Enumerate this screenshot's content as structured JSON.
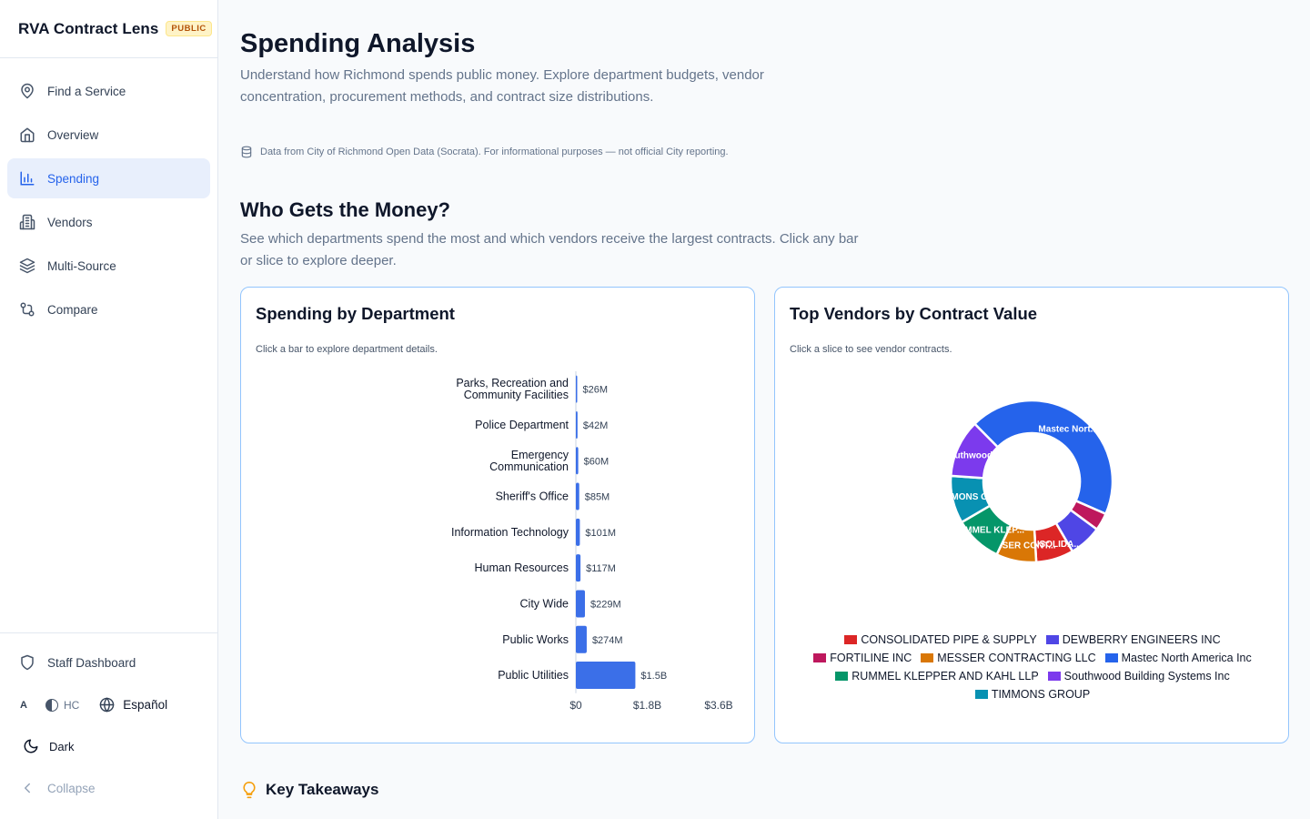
{
  "app": {
    "title": "RVA Contract Lens",
    "badge": "PUBLIC"
  },
  "nav": {
    "items": [
      {
        "label": "Find a Service",
        "icon": "map-pin-icon"
      },
      {
        "label": "Overview",
        "icon": "home-icon"
      },
      {
        "label": "Spending",
        "icon": "bar-chart-icon",
        "active": true
      },
      {
        "label": "Vendors",
        "icon": "building-icon"
      },
      {
        "label": "Multi-Source",
        "icon": "layers-icon"
      },
      {
        "label": "Compare",
        "icon": "compare-icon"
      }
    ]
  },
  "sidebar_bottom": {
    "staff_dashboard": "Staff Dashboard",
    "font_toggle": "A",
    "high_contrast": "HC",
    "language": "Español",
    "dark_mode": "Dark",
    "collapse": "Collapse"
  },
  "page": {
    "title": "Spending Analysis",
    "description": "Understand how Richmond spends public money. Explore department budgets, vendor concentration, procurement methods, and contract size distributions.",
    "source_note": "Data from City of Richmond Open Data (Socrata). For informational purposes — not official City reporting."
  },
  "section": {
    "title": "Who Gets the Money?",
    "description": "See which departments spend the most and which vendors receive the largest contracts. Click any bar or slice to explore deeper."
  },
  "dept_card": {
    "title": "Spending by Department",
    "hint": "Click a bar to explore department details."
  },
  "vendor_card": {
    "title": "Top Vendors by Contract Value",
    "hint": "Click a slice to see vendor contracts."
  },
  "takeaways": {
    "title": "Key Takeaways"
  },
  "colors": {
    "accent": "#2563eb",
    "bar": "#3b6fe8",
    "card_border": "#93c5fd"
  },
  "chart_data": [
    {
      "type": "bar",
      "orientation": "horizontal",
      "title": "Spending by Department",
      "categories": [
        [
          "Parks, Recreation and",
          "Community Facilities"
        ],
        [
          "Police Department"
        ],
        [
          "Emergency",
          "Communication"
        ],
        [
          "Sheriff's Office"
        ],
        [
          "Information Technology"
        ],
        [
          "Human Resources"
        ],
        [
          "City Wide"
        ],
        [
          "Public Works"
        ],
        [
          "Public Utilities"
        ]
      ],
      "values": [
        26,
        42,
        60,
        85,
        101,
        117,
        229,
        274,
        1500
      ],
      "value_labels": [
        "$26M",
        "$42M",
        "$60M",
        "$85M",
        "$101M",
        "$117M",
        "$229M",
        "$274M",
        "$1.5B"
      ],
      "unit": "USD millions",
      "xlim": [
        0,
        3600
      ],
      "x_ticks": [
        0,
        1800,
        3600
      ],
      "x_tick_labels": [
        "$0",
        "$1.8B",
        "$3.6B"
      ],
      "grid": false
    },
    {
      "type": "pie",
      "variant": "donut",
      "title": "Top Vendors by Contract Value",
      "slices": [
        {
          "name": "Mastec North America Inc",
          "label": "Mastec Nort...",
          "value": 44.0,
          "color": "#2563eb"
        },
        {
          "name": "FORTILINE INC",
          "label": "",
          "value": 3.5,
          "color": "#be185d"
        },
        {
          "name": "DEWBERRY ENGINEERS INC",
          "label": "",
          "value": 6.5,
          "color": "#4f46e5"
        },
        {
          "name": "CONSOLIDATED PIPE & SUPPLY",
          "label": "CONSOLIDA...",
          "value": 7.5,
          "color": "#dc2626"
        },
        {
          "name": "MESSER CONTRACTING LLC",
          "label": "MESSER CONT...",
          "value": 8.0,
          "color": "#d97706"
        },
        {
          "name": "RUMMEL KLEPPER AND KAHL LLP",
          "label": "RUMMEL KLEP...",
          "value": 9.5,
          "color": "#059669"
        },
        {
          "name": "TIMMONS GROUP",
          "label": "TIMMONS GR...",
          "value": 9.5,
          "color": "#0891b2"
        },
        {
          "name": "Southwood Building Systems Inc",
          "label": "Southwood ...",
          "value": 11.5,
          "color": "#7c3aed"
        }
      ],
      "legend": [
        {
          "name": "CONSOLIDATED PIPE & SUPPLY",
          "color": "#dc2626"
        },
        {
          "name": "DEWBERRY ENGINEERS INC",
          "color": "#4f46e5"
        },
        {
          "name": "FORTILINE INC",
          "color": "#be185d"
        },
        {
          "name": "MESSER CONTRACTING LLC",
          "color": "#d97706"
        },
        {
          "name": "Mastec North America Inc",
          "color": "#2563eb"
        },
        {
          "name": "RUMMEL KLEPPER AND KAHL LLP",
          "color": "#059669"
        },
        {
          "name": "Southwood Building Systems Inc",
          "color": "#7c3aed"
        },
        {
          "name": "TIMMONS GROUP",
          "color": "#0891b2"
        }
      ],
      "legend_position": "bottom"
    }
  ]
}
